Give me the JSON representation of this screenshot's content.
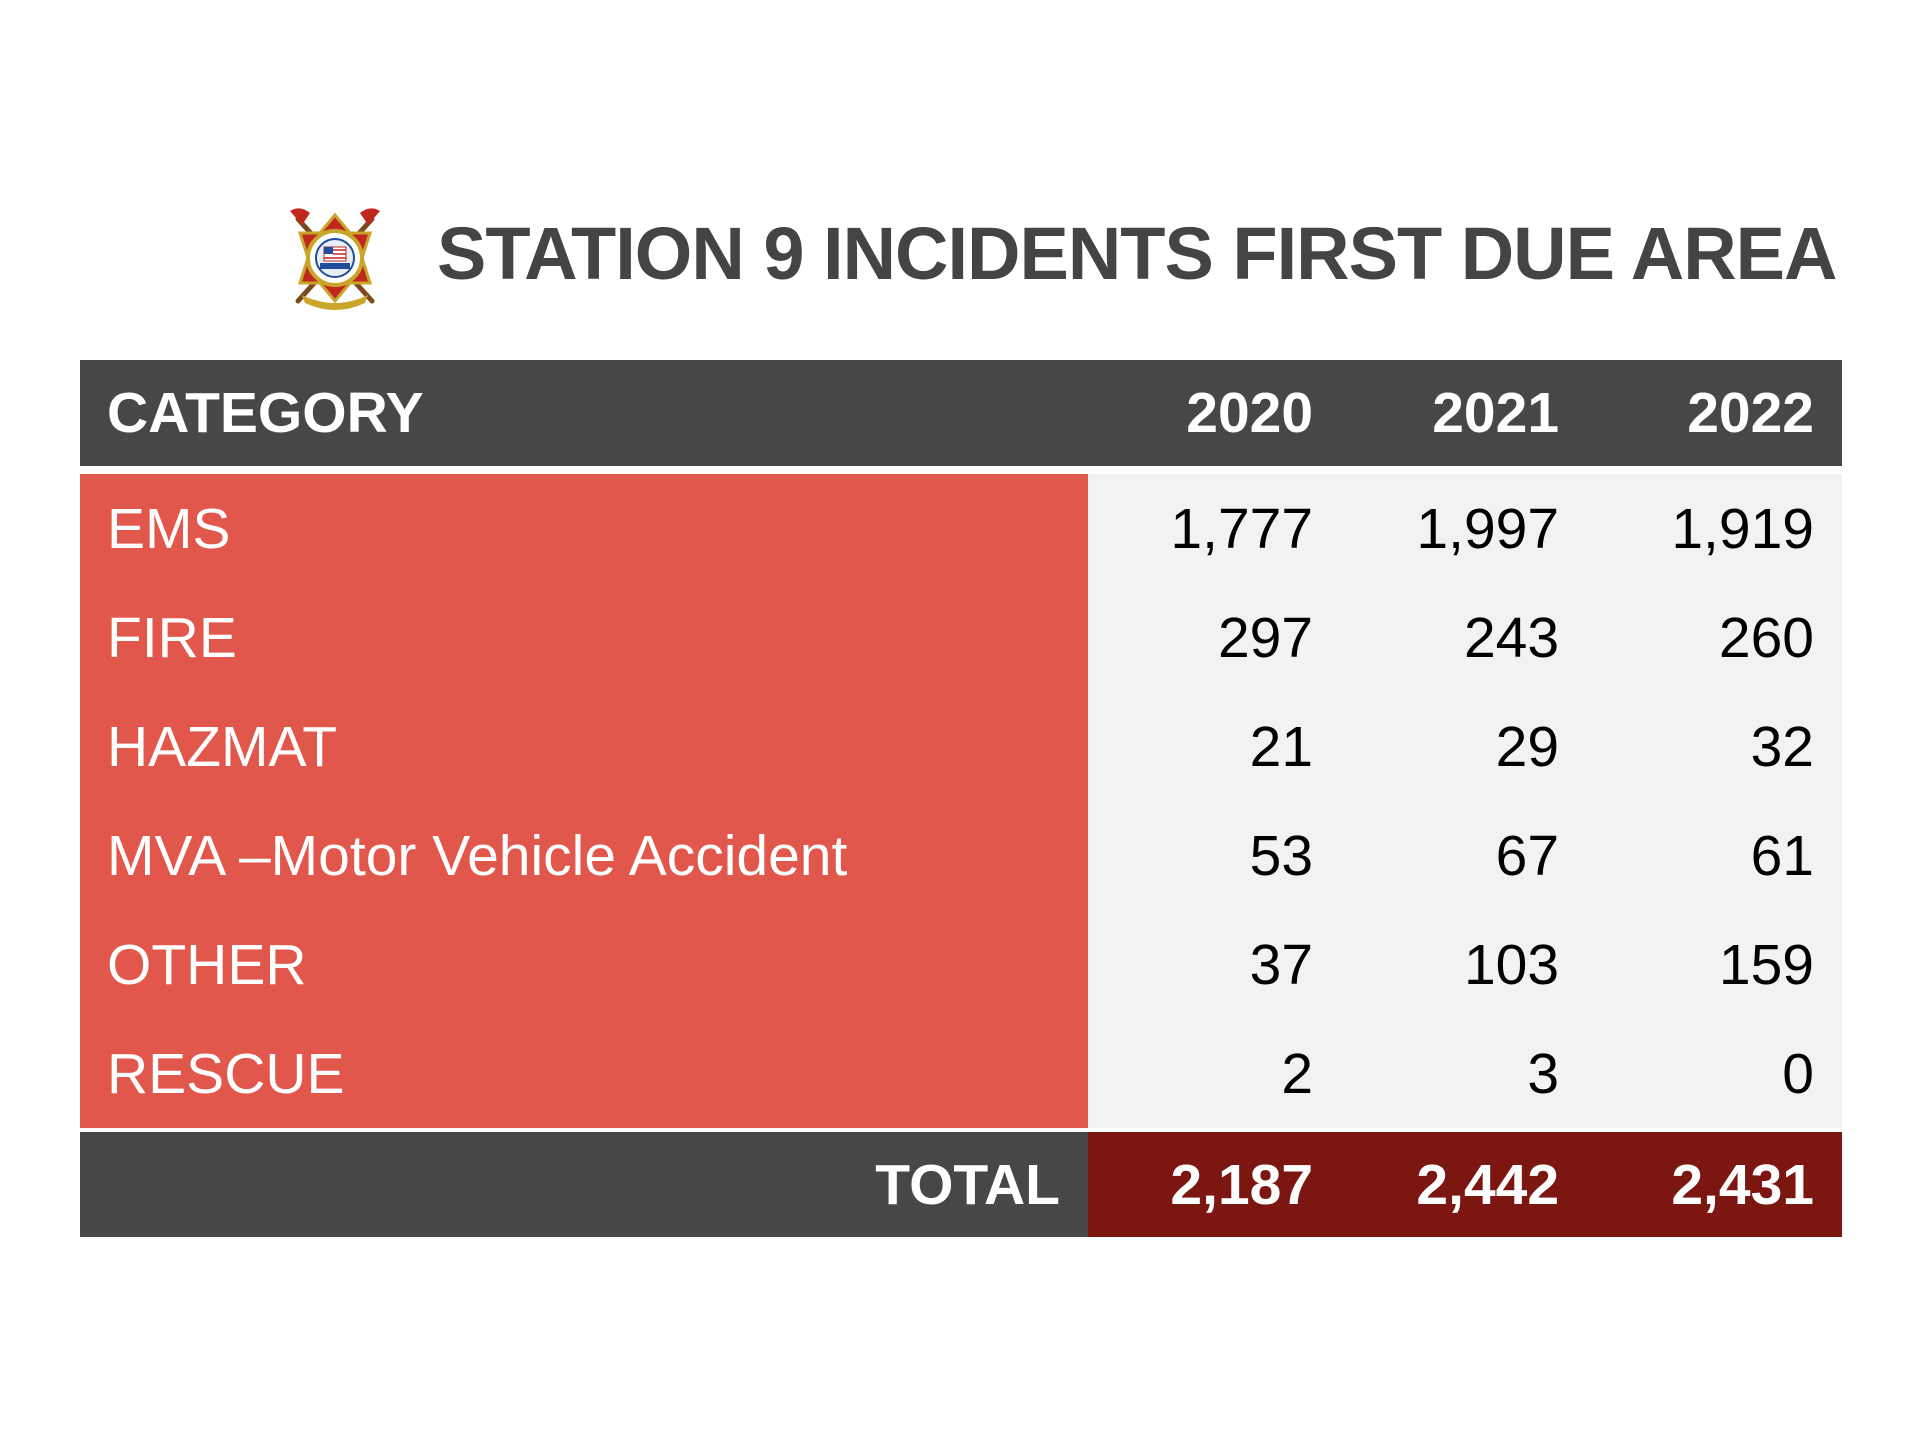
{
  "title": "STATION 9 INCIDENTS FIRST DUE AREA",
  "logo": {
    "icon": "fire-department-seal-icon",
    "colors": {
      "gold": "#c9a52a",
      "red": "#c0271d",
      "blue": "#1f4f9a"
    }
  },
  "table": {
    "headers": [
      "CATEGORY",
      "2020",
      "2021",
      "2022"
    ],
    "rows": [
      {
        "category": "EMS",
        "values": [
          "1,777",
          "1,997",
          "1,919"
        ]
      },
      {
        "category": "FIRE",
        "values": [
          "297",
          "243",
          "260"
        ]
      },
      {
        "category": "HAZMAT",
        "values": [
          "21",
          "29",
          "32"
        ]
      },
      {
        "category": "MVA –Motor Vehicle Accident",
        "values": [
          "53",
          "67",
          "61"
        ]
      },
      {
        "category": "OTHER",
        "values": [
          "37",
          "103",
          "159"
        ]
      },
      {
        "category": "RESCUE",
        "values": [
          "2",
          "3",
          "0"
        ]
      }
    ],
    "total": {
      "label": "TOTAL",
      "values": [
        "2,187",
        "2,442",
        "2,431"
      ]
    }
  },
  "colors": {
    "header_bg": "#474747",
    "category_bg": "#e2574b",
    "value_bg": "#f2f2f2",
    "total_value_bg": "#7b1710",
    "title_text": "#444444"
  }
}
